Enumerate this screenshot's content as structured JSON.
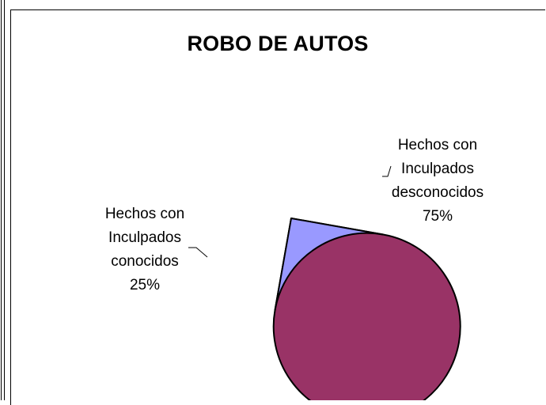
{
  "chart_data": {
    "type": "pie",
    "title": "ROBO DE AUTOS",
    "slices": [
      {
        "label_lines": [
          "Hechos con",
          "Inculpados",
          "desconocidos"
        ],
        "percent_label": "75%",
        "value": 75,
        "color": "#993366"
      },
      {
        "label_lines": [
          "Hechos con",
          "Inculpados",
          "conocidos"
        ],
        "percent_label": "25%",
        "value": 25,
        "color": "#9999ff"
      }
    ]
  }
}
